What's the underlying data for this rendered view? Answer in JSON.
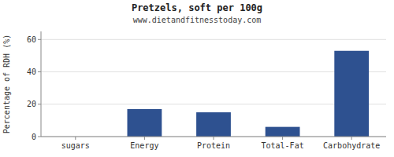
{
  "chart_data": {
    "type": "bar",
    "title": "Pretzels, soft per 100g",
    "subtitle": "www.dietandfitnesstoday.com",
    "categories": [
      "sugars",
      "Energy",
      "Protein",
      "Total-Fat",
      "Carbohydrate"
    ],
    "values": [
      0,
      17,
      15,
      6,
      53
    ],
    "color": "#2e5190",
    "ylabel": "Percentage of RDH (%)",
    "ylim": [
      0,
      65
    ],
    "yticks": [
      0,
      20,
      40,
      60
    ],
    "grid": true
  }
}
